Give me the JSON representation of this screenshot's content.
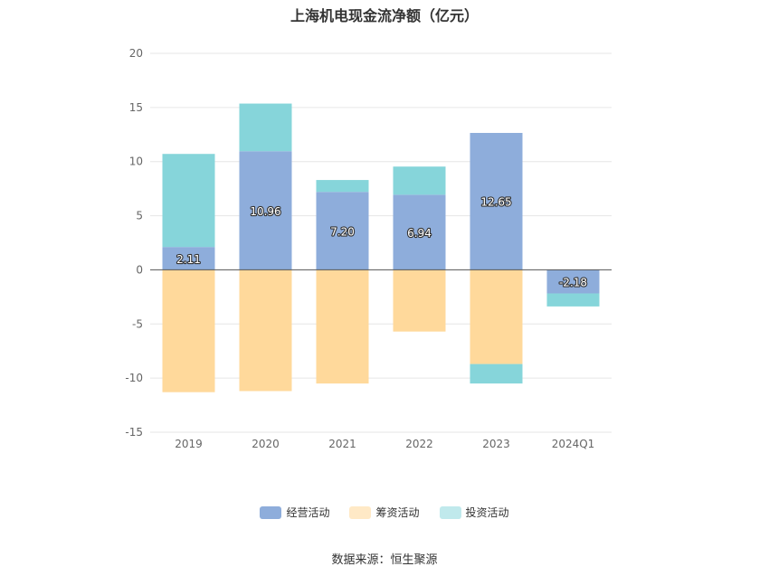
{
  "chart_data": {
    "type": "bar",
    "stacked": true,
    "title": "上海机电现金流净额（亿元）",
    "xlabel": "",
    "ylabel": "",
    "categories": [
      "2019",
      "2020",
      "2021",
      "2022",
      "2023",
      "2024Q1"
    ],
    "ylim": [
      -15,
      20
    ],
    "yticks": [
      -15,
      -10,
      -5,
      0,
      5,
      10,
      15,
      20
    ],
    "grid": true,
    "legend_position": "bottom",
    "series": [
      {
        "name": "经营活动",
        "color": "#8eaddb",
        "values": [
          2.11,
          10.96,
          7.2,
          6.94,
          12.65,
          -2.18
        ],
        "labels": [
          "2.11",
          "10.96",
          "7.20",
          "6.94",
          "12.65",
          "-2.18"
        ]
      },
      {
        "name": "筹资活动",
        "color": "#ffd99b",
        "values": [
          -11.3,
          -11.2,
          -10.5,
          -5.7,
          -8.7,
          0
        ]
      },
      {
        "name": "投资活动",
        "color": "#86d5da",
        "values": [
          8.6,
          4.4,
          1.1,
          2.6,
          -1.8,
          -1.2
        ]
      }
    ],
    "legend_colors": [
      "#8eaddb",
      "#ffe9c6",
      "#c0e9ec"
    ],
    "source": "数据来源：恒生聚源"
  }
}
